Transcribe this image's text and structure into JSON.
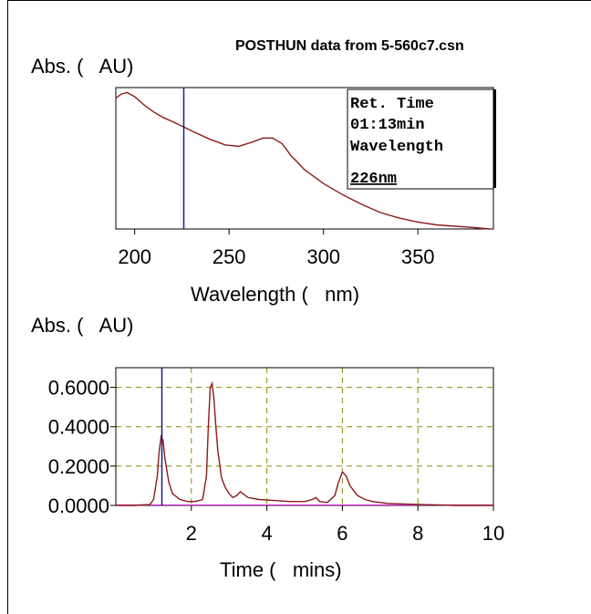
{
  "header": {
    "title": "POSTHUN data from 5-560c7.csn"
  },
  "spectrum": {
    "ylabel": "Abs. (   AU)",
    "xlabel": "Wavelength (   nm)",
    "info": {
      "line1": "Ret. Time",
      "line2": "01:13min",
      "line3": "Wavelength",
      "line4": "226nm"
    },
    "colors": {
      "trace": "#8b1a1a",
      "cursor": "#1a1a8b",
      "axis": "#000000"
    }
  },
  "chromatogram": {
    "ylabel": "Abs. (   AU)",
    "xlabel": "Time (   mins)",
    "colors": {
      "trace": "#8b1a1a",
      "cursor": "#1a1a8b",
      "grid": "#8b8b00",
      "baseline": "#cc33cc",
      "axis": "#000000"
    }
  },
  "chart_data": [
    {
      "type": "line",
      "title": "POSTHUN data from 5-560c7.csn",
      "xlabel": "Wavelength (   nm)",
      "ylabel": "Abs. (   AU)",
      "xlim": [
        190,
        390
      ],
      "ylim": [
        0,
        1
      ],
      "grid": false,
      "xticks": [
        200,
        250,
        300,
        350
      ],
      "cursor_x": 226,
      "series": [
        {
          "x": [
            190,
            193,
            196,
            200,
            205,
            210,
            215,
            220,
            226,
            232,
            240,
            248,
            255,
            262,
            268,
            273,
            278,
            283,
            290,
            300,
            310,
            320,
            330,
            340,
            350,
            360,
            370,
            380,
            388
          ],
          "y": [
            0.95,
            0.98,
            0.99,
            0.96,
            0.9,
            0.85,
            0.81,
            0.78,
            0.74,
            0.7,
            0.65,
            0.61,
            0.6,
            0.63,
            0.66,
            0.66,
            0.62,
            0.53,
            0.43,
            0.33,
            0.25,
            0.18,
            0.12,
            0.08,
            0.05,
            0.03,
            0.02,
            0.01,
            0.0
          ]
        }
      ]
    },
    {
      "type": "line",
      "xlabel": "Time (   mins)",
      "ylabel": "Abs. (   AU)",
      "xlim": [
        0,
        10
      ],
      "ylim": [
        0,
        0.7
      ],
      "grid": true,
      "xticks": [
        2,
        4,
        6,
        8,
        10
      ],
      "yticks": [
        "0.0000",
        "0.2000",
        "0.4000",
        "0.6000"
      ],
      "ytick_values": [
        0,
        0.2,
        0.4,
        0.6
      ],
      "cursor_x": 1.22,
      "series": [
        {
          "x": [
            0.0,
            0.5,
            0.9,
            1.0,
            1.1,
            1.15,
            1.2,
            1.25,
            1.3,
            1.4,
            1.5,
            1.7,
            1.9,
            2.1,
            2.3,
            2.4,
            2.45,
            2.5,
            2.55,
            2.6,
            2.65,
            2.7,
            2.8,
            2.9,
            3.0,
            3.1,
            3.2,
            3.3,
            3.5,
            3.8,
            4.2,
            4.6,
            5.0,
            5.2,
            5.3,
            5.4,
            5.6,
            5.8,
            5.9,
            6.0,
            6.1,
            6.2,
            6.4,
            6.6,
            6.8,
            7.2,
            8.0,
            9.0,
            10.0
          ],
          "y": [
            0.0,
            0.0,
            0.005,
            0.03,
            0.15,
            0.28,
            0.35,
            0.33,
            0.24,
            0.12,
            0.06,
            0.03,
            0.02,
            0.02,
            0.03,
            0.15,
            0.4,
            0.6,
            0.62,
            0.54,
            0.4,
            0.28,
            0.14,
            0.09,
            0.06,
            0.04,
            0.05,
            0.07,
            0.04,
            0.03,
            0.025,
            0.02,
            0.02,
            0.03,
            0.04,
            0.02,
            0.015,
            0.05,
            0.12,
            0.17,
            0.15,
            0.1,
            0.05,
            0.03,
            0.02,
            0.01,
            0.005,
            0.0,
            0.0
          ]
        }
      ]
    }
  ]
}
